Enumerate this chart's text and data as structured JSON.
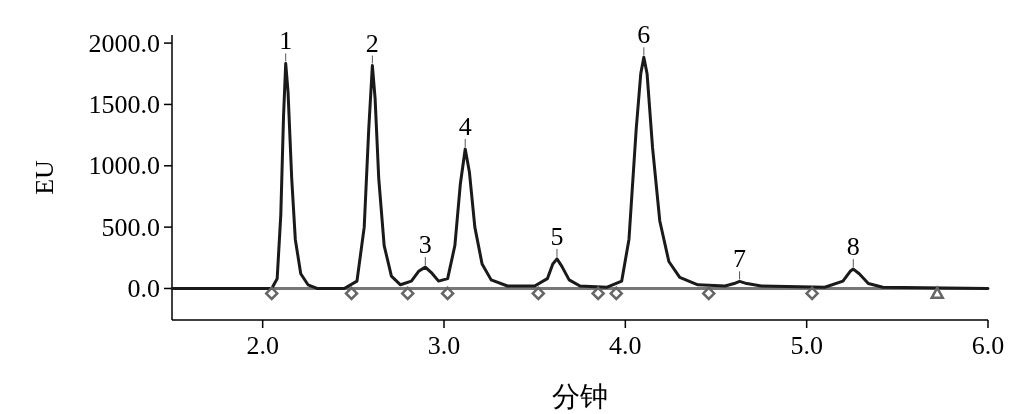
{
  "chart_data": {
    "type": "line",
    "xlabel": "分钟",
    "ylabel": "EU",
    "xlim": [
      1.5,
      6.0
    ],
    "ylim": [
      -257,
      2066
    ],
    "xticks": [
      {
        "value": 2,
        "label": "2.0"
      },
      {
        "value": 3,
        "label": "3.0"
      },
      {
        "value": 4,
        "label": "4.0"
      },
      {
        "value": 5,
        "label": "5.0"
      },
      {
        "value": 6,
        "label": "6.0"
      }
    ],
    "yticks": [
      {
        "value": 0,
        "label": "0.0"
      },
      {
        "value": 500,
        "label": "500.0"
      },
      {
        "value": 1000,
        "label": "1000.0"
      },
      {
        "value": 1500,
        "label": "1500.0"
      },
      {
        "value": 2000,
        "label": "2000.0"
      }
    ],
    "series": [
      {
        "color": "#1a1a1a",
        "line_style": "solid",
        "x": [
          1.5,
          2.0,
          2.05,
          2.08,
          2.1,
          2.115,
          2.127,
          2.14,
          2.16,
          2.18,
          2.21,
          2.25,
          2.3,
          2.45,
          2.52,
          2.56,
          2.585,
          2.605,
          2.62,
          2.64,
          2.67,
          2.71,
          2.76,
          2.82,
          2.86,
          2.897,
          2.93,
          2.97,
          3.02,
          3.06,
          3.09,
          3.117,
          3.14,
          3.17,
          3.21,
          3.26,
          3.35,
          3.5,
          3.57,
          3.6,
          3.623,
          3.65,
          3.69,
          3.75,
          3.9,
          3.98,
          4.02,
          4.06,
          4.085,
          4.102,
          4.12,
          4.15,
          4.19,
          4.24,
          4.3,
          4.4,
          4.55,
          4.6,
          4.63,
          4.67,
          4.75,
          5.1,
          5.2,
          5.24,
          5.257,
          5.29,
          5.34,
          5.42,
          6.0
        ],
        "values": [
          0,
          0,
          0,
          80,
          600,
          1400,
          1834,
          1600,
          900,
          400,
          120,
          30,
          0,
          0,
          60,
          500,
          1300,
          1817,
          1550,
          900,
          350,
          100,
          30,
          60,
          140,
          174,
          130,
          60,
          80,
          350,
          850,
          1137,
          950,
          500,
          200,
          70,
          20,
          20,
          80,
          200,
          241,
          180,
          70,
          20,
          10,
          60,
          400,
          1300,
          1750,
          1884,
          1750,
          1150,
          550,
          220,
          90,
          30,
          20,
          40,
          58,
          40,
          20,
          10,
          60,
          140,
          158,
          120,
          40,
          10,
          0
        ]
      },
      {
        "type": "scatter",
        "color": "#666666",
        "marker": "diamond",
        "x": [
          2.05,
          2.49,
          2.8,
          3.02,
          3.52,
          3.85,
          3.95,
          4.46,
          5.03
        ],
        "values": [
          -40,
          -40,
          -40,
          -40,
          -40,
          -40,
          -40,
          -40,
          -40
        ]
      },
      {
        "type": "scatter",
        "color": "#666666",
        "marker": "triangle",
        "x": [
          5.72
        ],
        "values": [
          -40
        ]
      }
    ],
    "ref_lines": [
      {
        "axis": "y",
        "value": 0,
        "color": "#777777"
      }
    ],
    "annotations": [
      {
        "text": "1",
        "x": 2.127,
        "y": 1834
      },
      {
        "text": "2",
        "x": 2.605,
        "y": 1817
      },
      {
        "text": "3",
        "x": 2.897,
        "y": 174
      },
      {
        "text": "4",
        "x": 3.117,
        "y": 1137
      },
      {
        "text": "5",
        "x": 3.623,
        "y": 241
      },
      {
        "text": "6",
        "x": 4.102,
        "y": 1884
      },
      {
        "text": "7",
        "x": 4.63,
        "y": 58
      },
      {
        "text": "8",
        "x": 5.257,
        "y": 158
      }
    ]
  }
}
